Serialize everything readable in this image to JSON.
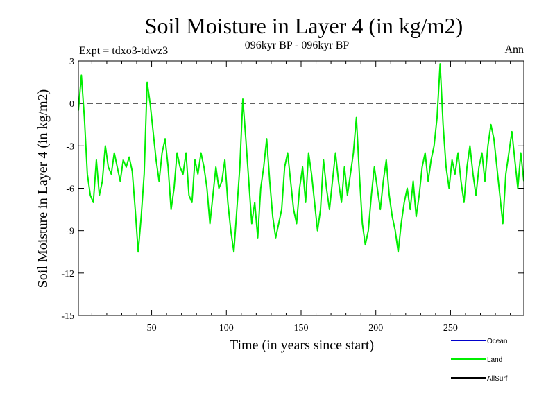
{
  "header": {
    "title": "Soil Moisture in Layer 4 (in kg/m2)",
    "subtitle": "096kyr BP - 096kyr BP",
    "left_label": "Expt = tdxo3-tdwz3",
    "right_label": "Ann"
  },
  "chart_data": {
    "type": "line",
    "title": "Soil Moisture in Layer 4 (in kg/m2)",
    "xlabel": "Time (in years since start)",
    "ylabel": "Soil Moisture in Layer 4 (in kg/m2)",
    "xlim": [
      1,
      299
    ],
    "ylim": [
      -15,
      3
    ],
    "xticks": [
      50,
      100,
      150,
      200,
      250
    ],
    "yticks": [
      3,
      0,
      -3,
      -6,
      -9,
      -12,
      -15
    ],
    "reference_line": {
      "y": 0,
      "style": "dashed"
    },
    "legend": [
      {
        "name": "Ocean",
        "color": "#0000cc"
      },
      {
        "name": "Land",
        "color": "#00ee00"
      },
      {
        "name": "AllSurf",
        "color": "#000000"
      }
    ],
    "series": [
      {
        "name": "Land",
        "color": "#00ee00",
        "x": [
          1,
          3,
          5,
          7,
          9,
          11,
          13,
          15,
          17,
          19,
          21,
          23,
          25,
          27,
          29,
          31,
          33,
          35,
          37,
          39,
          41,
          43,
          45,
          47,
          49,
          51,
          53,
          55,
          57,
          59,
          61,
          63,
          65,
          67,
          69,
          71,
          73,
          75,
          77,
          79,
          81,
          83,
          85,
          87,
          89,
          91,
          93,
          95,
          97,
          99,
          101,
          103,
          105,
          107,
          109,
          111,
          113,
          115,
          117,
          119,
          121,
          123,
          125,
          127,
          129,
          131,
          133,
          135,
          137,
          139,
          141,
          143,
          145,
          147,
          149,
          151,
          153,
          155,
          157,
          159,
          161,
          163,
          165,
          167,
          169,
          171,
          173,
          175,
          177,
          179,
          181,
          183,
          185,
          187,
          189,
          191,
          193,
          195,
          197,
          199,
          201,
          203,
          205,
          207,
          209,
          211,
          213,
          215,
          217,
          219,
          221,
          223,
          225,
          227,
          229,
          231,
          233,
          235,
          237,
          239,
          241,
          243,
          245,
          247,
          249,
          251,
          253,
          255,
          257,
          259,
          261,
          263,
          265,
          267,
          269,
          271,
          273,
          275,
          277,
          279,
          281,
          283,
          285,
          287,
          289,
          291,
          293,
          295,
          297,
          299
        ],
        "y": [
          -0.5,
          2.0,
          -1.0,
          -5.0,
          -6.5,
          -7.0,
          -4.0,
          -6.5,
          -5.5,
          -3.0,
          -4.5,
          -5.0,
          -3.5,
          -4.5,
          -5.5,
          -4.0,
          -4.5,
          -3.8,
          -4.8,
          -7.5,
          -10.5,
          -8.0,
          -5.0,
          1.5,
          0.0,
          -2.0,
          -4.0,
          -5.5,
          -3.5,
          -2.5,
          -4.5,
          -7.5,
          -6.0,
          -3.5,
          -4.5,
          -5.0,
          -3.5,
          -6.5,
          -7.0,
          -4.0,
          -5.0,
          -3.5,
          -4.5,
          -6.0,
          -8.5,
          -6.5,
          -4.5,
          -6.0,
          -5.5,
          -4.0,
          -7.0,
          -9.0,
          -10.5,
          -7.5,
          -4.5,
          0.3,
          -2.5,
          -5.5,
          -8.5,
          -7.0,
          -9.5,
          -6.0,
          -4.5,
          -2.5,
          -5.5,
          -8.0,
          -9.5,
          -8.5,
          -7.5,
          -4.5,
          -3.5,
          -5.5,
          -7.5,
          -8.5,
          -6.0,
          -4.5,
          -7.0,
          -3.5,
          -5.0,
          -7.0,
          -9.0,
          -7.5,
          -4.0,
          -6.0,
          -7.5,
          -5.5,
          -3.5,
          -5.5,
          -7.0,
          -4.5,
          -6.5,
          -5.0,
          -3.5,
          -1.0,
          -5.0,
          -8.5,
          -10.0,
          -9.0,
          -6.5,
          -4.5,
          -6.0,
          -7.5,
          -5.5,
          -4.0,
          -6.5,
          -8.0,
          -9.0,
          -10.5,
          -8.5,
          -7.0,
          -6.0,
          -7.5,
          -5.5,
          -8.0,
          -6.5,
          -4.5,
          -3.5,
          -5.5,
          -4.0,
          -3.0,
          -1.0,
          2.8,
          -1.5,
          -4.5,
          -6.0,
          -4.0,
          -5.0,
          -3.5,
          -5.5,
          -7.0,
          -4.5,
          -3.0,
          -5.0,
          -6.5,
          -4.5,
          -3.5,
          -5.5,
          -3.0,
          -1.5,
          -2.5,
          -4.5,
          -6.5,
          -8.5,
          -5.0,
          -3.5,
          -2.0,
          -4.0,
          -6.0,
          -3.5,
          -5.5
        ]
      }
    ]
  }
}
